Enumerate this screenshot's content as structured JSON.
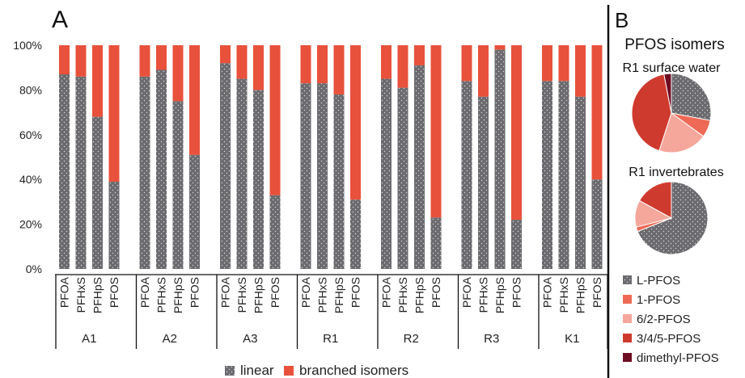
{
  "panel_a_letter": "A",
  "panel_b_letter": "B",
  "colors": {
    "linear": "#6b6b6f",
    "branched": "#e8513b",
    "L-PFOS": "#6b6b6f",
    "1-PFOS": "#ee6a56",
    "6/2-PFOS": "#f5a79c",
    "3/4/5-PFOS": "#cf3a2e",
    "dimethyl-PFOS": "#6e0c22"
  },
  "chart_data": [
    {
      "type": "bar",
      "stacked": true,
      "percent": true,
      "ylim": [
        0,
        100
      ],
      "yticks": [
        "0%",
        "20%",
        "40%",
        "60%",
        "80%",
        "100%"
      ],
      "grid": false,
      "legend_position": "bottom",
      "group_labels": [
        "A1",
        "A2",
        "A3",
        "R1",
        "R2",
        "R3",
        "K1"
      ],
      "categories": [
        "PFOA",
        "PFHxS",
        "PFHpS",
        "PFOS"
      ],
      "series": [
        {
          "name": "linear",
          "values": [
            [
              87,
              86,
              68,
              39
            ],
            [
              86,
              89,
              75,
              51
            ],
            [
              92,
              85,
              80,
              33
            ],
            [
              83,
              83,
              78,
              31
            ],
            [
              85,
              81,
              91,
              23
            ],
            [
              84,
              77,
              98,
              22
            ],
            [
              84,
              84,
              77,
              40
            ]
          ]
        },
        {
          "name": "branched isomers",
          "values": [
            [
              13,
              14,
              32,
              61
            ],
            [
              14,
              11,
              25,
              49
            ],
            [
              8,
              15,
              20,
              67
            ],
            [
              17,
              17,
              22,
              69
            ],
            [
              15,
              19,
              9,
              77
            ],
            [
              16,
              23,
              2,
              78
            ],
            [
              16,
              16,
              23,
              60
            ]
          ]
        }
      ]
    },
    {
      "type": "pie",
      "title": "PFOS isomers",
      "subtitle": "R1 surface water",
      "slices": [
        {
          "label": "L-PFOS",
          "value": 28
        },
        {
          "label": "1-PFOS",
          "value": 7
        },
        {
          "label": "6/2-PFOS",
          "value": 20
        },
        {
          "label": "3/4/5-PFOS",
          "value": 42
        },
        {
          "label": "dimethyl-PFOS",
          "value": 3
        }
      ]
    },
    {
      "type": "pie",
      "subtitle": "R1 invertebrates",
      "slices": [
        {
          "label": "L-PFOS",
          "value": 69
        },
        {
          "label": "1-PFOS",
          "value": 2
        },
        {
          "label": "6/2-PFOS",
          "value": 12
        },
        {
          "label": "3/4/5-PFOS",
          "value": 17
        },
        {
          "label": "dimethyl-PFOS",
          "value": 0
        }
      ]
    }
  ],
  "pie_legend": [
    "L-PFOS",
    "1-PFOS",
    "6/2-PFOS",
    "3/4/5-PFOS",
    "dimethyl-PFOS"
  ]
}
